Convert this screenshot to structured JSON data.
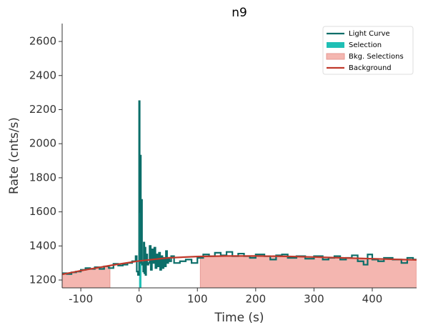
{
  "chart_data": {
    "type": "lightcurve",
    "title": "n9",
    "x_label": "Time (s)",
    "y_label": "Rate (cnts/s)",
    "xlim": [
      -132,
      476
    ],
    "ylim": [
      1154,
      2705
    ],
    "xticks": [
      -100,
      0,
      100,
      200,
      300,
      400
    ],
    "yticks": [
      1200,
      1400,
      1600,
      1800,
      2000,
      2200,
      2400,
      2600
    ],
    "legend": "upper right",
    "series": [
      {
        "name": "Light Curve",
        "color": "#0b6e69",
        "step": "post",
        "x": [
          -132,
          -124,
          -116,
          -108,
          -100,
          -92,
          -84,
          -76,
          -68,
          -60,
          -52,
          -44,
          -36,
          -28,
          -20,
          -12,
          -6,
          -4,
          -2,
          0,
          1,
          2,
          3,
          4,
          5,
          6,
          7,
          8,
          9,
          10,
          11,
          12,
          14,
          16,
          18,
          20,
          22,
          24,
          26,
          28,
          30,
          32,
          34,
          36,
          38,
          40,
          42,
          44,
          46,
          48,
          50,
          52,
          55,
          60,
          70,
          80,
          90,
          100,
          110,
          120,
          130,
          140,
          150,
          160,
          170,
          180,
          190,
          200,
          215,
          225,
          235,
          245,
          255,
          270,
          285,
          300,
          315,
          325,
          335,
          345,
          355,
          365,
          375,
          385,
          392,
          400,
          410,
          420,
          435,
          450,
          460,
          470,
          476
        ],
        "values": [
          1240,
          1235,
          1245,
          1250,
          1260,
          1270,
          1265,
          1275,
          1265,
          1280,
          1270,
          1295,
          1285,
          1290,
          1300,
          1310,
          1340,
          1250,
          1230,
          2250,
          1600,
          1930,
          1300,
          1670,
          1290,
          1300,
          1250,
          1420,
          1240,
          1390,
          1230,
          1350,
          1290,
          1300,
          1400,
          1260,
          1380,
          1300,
          1390,
          1270,
          1350,
          1280,
          1360,
          1260,
          1340,
          1270,
          1330,
          1280,
          1370,
          1300,
          1330,
          1310,
          1340,
          1300,
          1310,
          1320,
          1300,
          1330,
          1350,
          1340,
          1360,
          1345,
          1365,
          1340,
          1355,
          1340,
          1330,
          1350,
          1340,
          1320,
          1345,
          1350,
          1330,
          1340,
          1325,
          1340,
          1320,
          1330,
          1340,
          1320,
          1330,
          1345,
          1310,
          1290,
          1350,
          1320,
          1310,
          1330,
          1320,
          1300,
          1330,
          1320,
          1320
        ]
      },
      {
        "name": "Selection",
        "color": "#1fbfb5",
        "range": [
          0,
          4
        ]
      },
      {
        "name": "Bkg. Selections",
        "color": "#f4b6b0",
        "regions": [
          [
            -132,
            -50
          ],
          [
            105,
            476
          ]
        ]
      },
      {
        "name": "Background",
        "color": "#c0392b",
        "x": [
          -132,
          -100,
          -50,
          0,
          50,
          100,
          150,
          200,
          250,
          300,
          350,
          400,
          476
        ],
        "values": [
          1233,
          1255,
          1285,
          1312,
          1330,
          1338,
          1341,
          1341,
          1339,
          1335,
          1330,
          1325,
          1318
        ]
      }
    ]
  }
}
